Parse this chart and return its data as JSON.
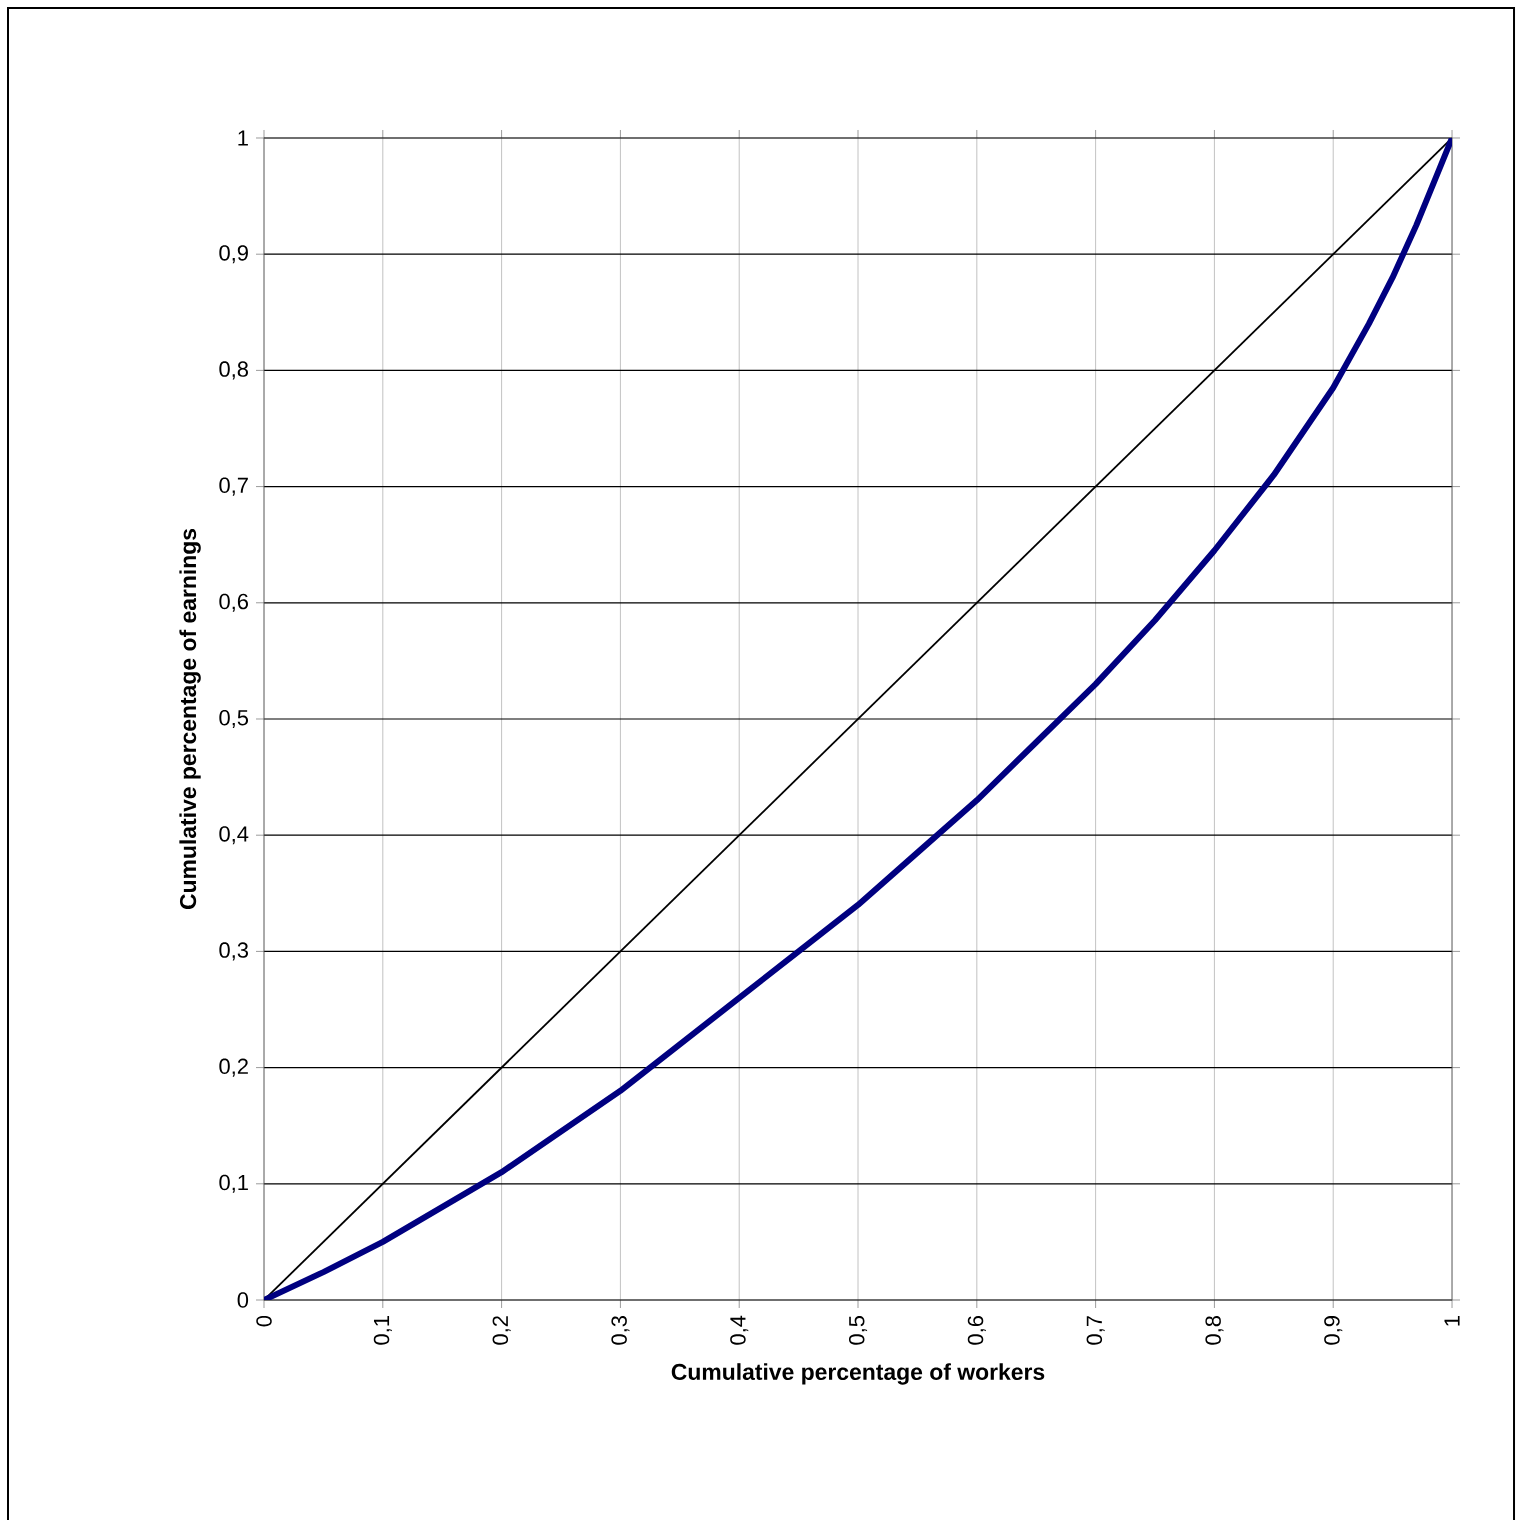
{
  "chart_data": {
    "type": "line",
    "xlabel": "Cumulative percentage of workers",
    "ylabel": "Cumulative percentage of earnings",
    "series": [
      {
        "color": "#000000",
        "x": [
          0,
          1
        ],
        "values": [
          0,
          1
        ]
      },
      {
        "color": "#000080",
        "x": [
          0,
          0.05,
          0.1,
          0.15,
          0.2,
          0.25,
          0.3,
          0.35,
          0.4,
          0.45,
          0.5,
          0.55,
          0.6,
          0.65,
          0.7,
          0.75,
          0.8,
          0.85,
          0.9,
          0.93,
          0.95,
          0.97,
          0.99,
          1
        ],
        "values": [
          0,
          0.024,
          0.05,
          0.08,
          0.11,
          0.145,
          0.18,
          0.22,
          0.26,
          0.3,
          0.34,
          0.385,
          0.43,
          0.48,
          0.53,
          0.585,
          0.645,
          0.71,
          0.785,
          0.84,
          0.88,
          0.925,
          0.975,
          1
        ]
      }
    ],
    "xlim": [
      0,
      1
    ],
    "ylim": [
      0,
      1
    ],
    "xticks": [
      0,
      {
        "value": 0.1,
        "label": "0,1"
      },
      {
        "value": 0.2,
        "label": "0,2"
      },
      {
        "value": 0.3,
        "label": "0,3"
      },
      {
        "value": 0.4,
        "label": "0,4"
      },
      {
        "value": 0.5,
        "label": "0,5"
      },
      {
        "value": 0.6,
        "label": "0,6"
      },
      {
        "value": 0.7,
        "label": "0,7"
      },
      {
        "value": 0.8,
        "label": "0,8"
      },
      {
        "value": 0.9,
        "label": "0,9"
      },
      1
    ],
    "yticks": [
      0,
      {
        "value": 0.1,
        "label": "0,1"
      },
      {
        "value": 0.2,
        "label": "0,2"
      },
      {
        "value": 0.3,
        "label": "0,3"
      },
      {
        "value": 0.4,
        "label": "0,4"
      },
      {
        "value": 0.5,
        "label": "0,5"
      },
      {
        "value": 0.6,
        "label": "0,6"
      },
      {
        "value": 0.7,
        "label": "0,7"
      },
      {
        "value": 0.8,
        "label": "0,8"
      },
      {
        "value": 0.9,
        "label": "0,9"
      },
      1
    ],
    "grid": true,
    "marker": "none",
    "line_style": "solid"
  }
}
